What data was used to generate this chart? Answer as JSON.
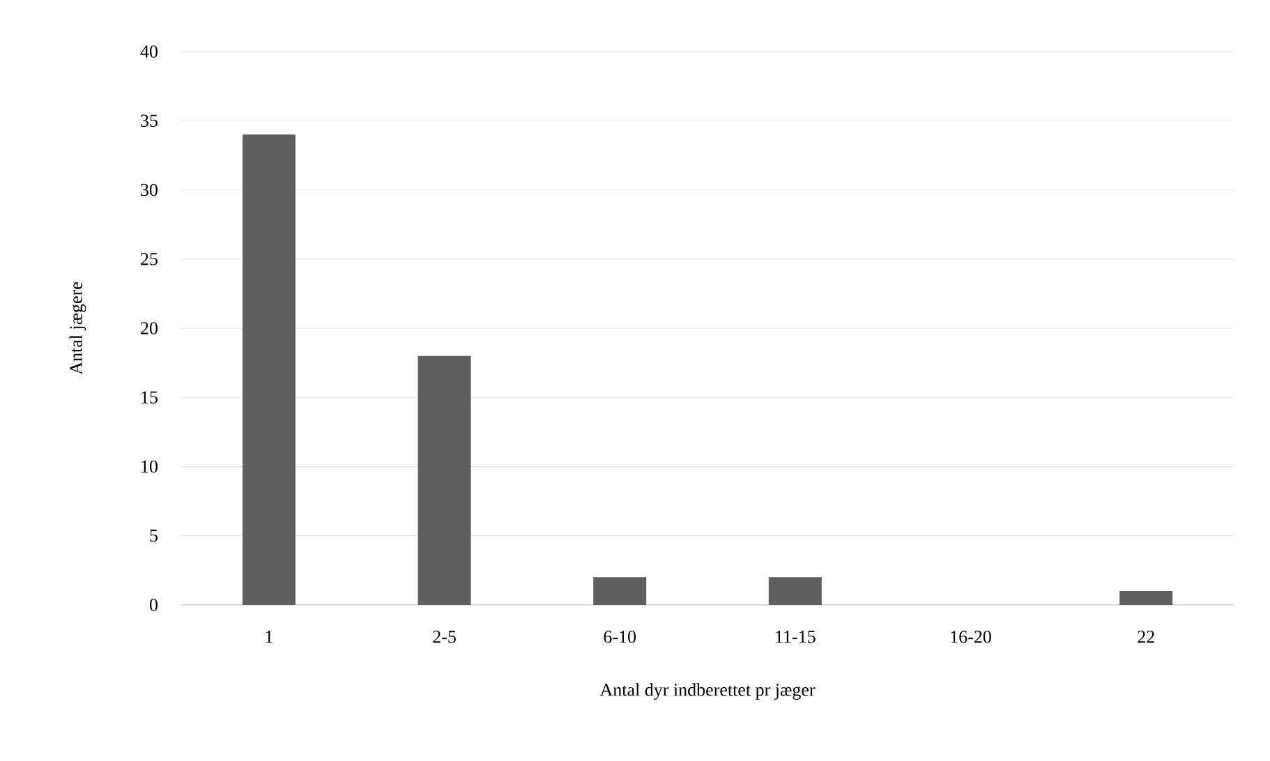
{
  "chart_data": {
    "type": "bar",
    "xlabel": "Antal dyr indberettet pr jæger",
    "ylabel": "Antal jægere",
    "categories": [
      "1",
      "2-5",
      "6-10",
      "11-15",
      "16-20",
      "22"
    ],
    "values": [
      34,
      18,
      2,
      2,
      0,
      1
    ],
    "color": "#5f5f5f",
    "ylim": [
      0,
      40
    ],
    "yticks": [
      0,
      5,
      10,
      15,
      20,
      25,
      30,
      35,
      40
    ],
    "grid": "y"
  }
}
